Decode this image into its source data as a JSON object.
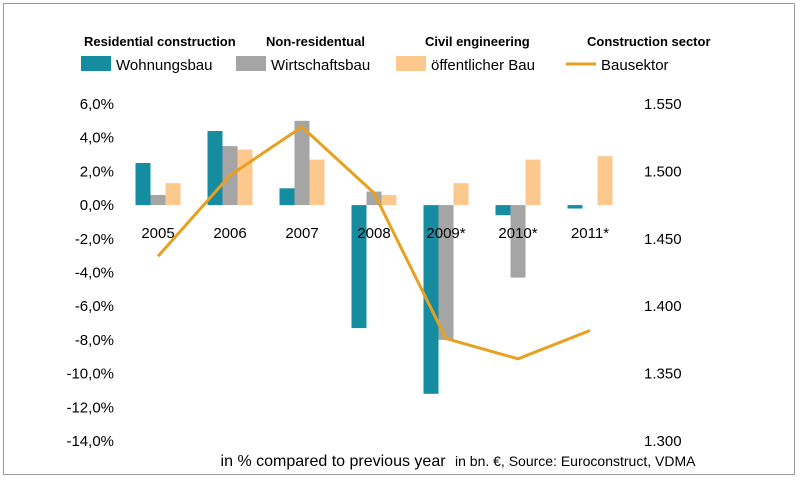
{
  "colors": {
    "wohnungsbau": "#168ca0",
    "wirtschaftsbau": "#a5a5a5",
    "oeffentlicher_bau": "#fcc88e",
    "bausektor": "#e8a020"
  },
  "headers": [
    "Residential construction",
    "Non-residentual",
    "Civil engineering",
    "Construction sector"
  ],
  "footer": {
    "main": "in % compared to previous year",
    "source": "in bn. €, Source: Euroconstruct, VDMA"
  },
  "chart_data": {
    "type": "bar",
    "categories": [
      "2005",
      "2006",
      "2007",
      "2008",
      "2009*",
      "2010*",
      "2011*"
    ],
    "series": [
      {
        "name": "Wohnungsbau",
        "axis": "left",
        "values": [
          2.5,
          4.4,
          1.0,
          -7.3,
          -11.2,
          -0.6,
          -0.2
        ]
      },
      {
        "name": "Wirtschaftsbau",
        "axis": "left",
        "values": [
          0.6,
          3.5,
          5.0,
          0.8,
          -8.0,
          -4.3,
          null
        ]
      },
      {
        "name": "öffentlicher Bau",
        "axis": "left",
        "values": [
          1.3,
          3.3,
          2.7,
          0.6,
          1.3,
          2.7,
          2.9
        ]
      },
      {
        "name": "Bausektor",
        "axis": "right",
        "type": "line",
        "values": [
          1.437,
          1.497,
          1.533,
          1.484,
          1.376,
          1.361,
          1.382
        ]
      }
    ],
    "y_left": {
      "min": -14,
      "max": 6,
      "step": 2,
      "ticks": [
        "6,0%",
        "4,0%",
        "2,0%",
        "0,0%",
        "-2,0%",
        "-4,0%",
        "-6,0%",
        "-8,0%",
        "-10,0%",
        "-12,0%",
        "-14,0%"
      ]
    },
    "y_right": {
      "min": 1.3,
      "max": 1.55,
      "step": 0.05,
      "ticks": [
        "1.550",
        "1.500",
        "1.450",
        "1.400",
        "1.350",
        "1.300"
      ]
    },
    "grid": false,
    "legend": "top"
  }
}
